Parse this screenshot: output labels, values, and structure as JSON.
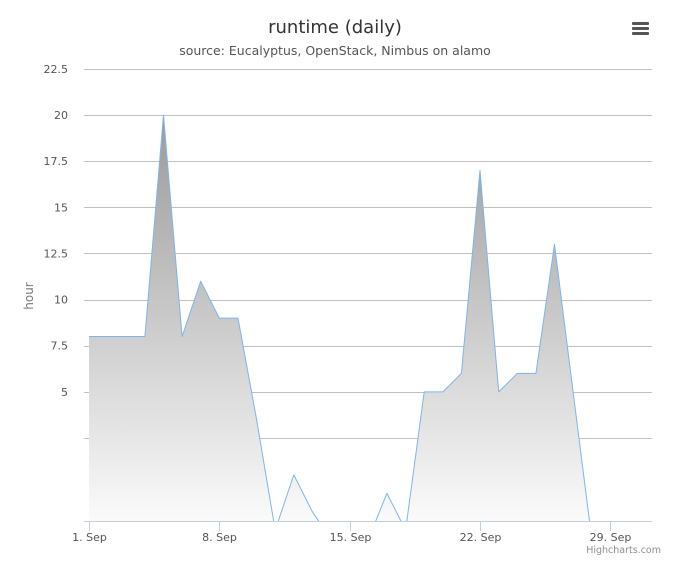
{
  "chart_data": {
    "type": "area",
    "title": "runtime (daily)",
    "subtitle": "source: Eucalyptus, OpenStack, Nimbus on alamo",
    "ylabel": "hour",
    "xlabel": "",
    "x_tick_labels": [
      "1. Sep",
      "8. Sep",
      "15. Sep",
      "22. Sep",
      "29. Sep"
    ],
    "y_tick_labels": [
      "5",
      "7.5",
      "10",
      "12.5",
      "15",
      "17.5",
      "20",
      "22.5"
    ],
    "ylim": [
      -2,
      22.5
    ],
    "xlim": [
      "2014-09-01",
      "2014-10-01"
    ],
    "grid": true,
    "legend": "none",
    "series": [
      {
        "x": [
          "2014-09-01",
          "2014-09-02",
          "2014-09-03",
          "2014-09-04",
          "2014-09-05",
          "2014-09-06",
          "2014-09-07",
          "2014-09-08",
          "2014-09-09",
          "2014-09-10",
          "2014-09-11",
          "2014-09-12",
          "2014-09-13",
          "2014-09-14",
          "2014-09-15",
          "2014-09-16",
          "2014-09-17",
          "2014-09-18",
          "2014-09-19",
          "2014-09-20",
          "2014-09-21",
          "2014-09-22",
          "2014-09-23",
          "2014-09-24",
          "2014-09-25",
          "2014-09-26",
          "2014-09-27",
          "2014-09-28"
        ],
        "values": [
          8,
          8,
          8,
          8,
          20,
          8,
          11,
          9,
          9,
          3.5,
          -2.5,
          0.5,
          -1.5,
          -3,
          -3,
          -3,
          -0.5,
          -2.5,
          5,
          5,
          6,
          17,
          5,
          6,
          6,
          13,
          5,
          -3
        ]
      }
    ],
    "colors": {
      "line": "#7cb5ec",
      "fill_top": "#999999",
      "fill_bottom": "#ffffff",
      "grid": "#c0c0c0",
      "axis": "#c0d0e0"
    }
  },
  "credits": "Highcharts.com",
  "menu": {
    "icon": "hamburger-menu-icon"
  }
}
